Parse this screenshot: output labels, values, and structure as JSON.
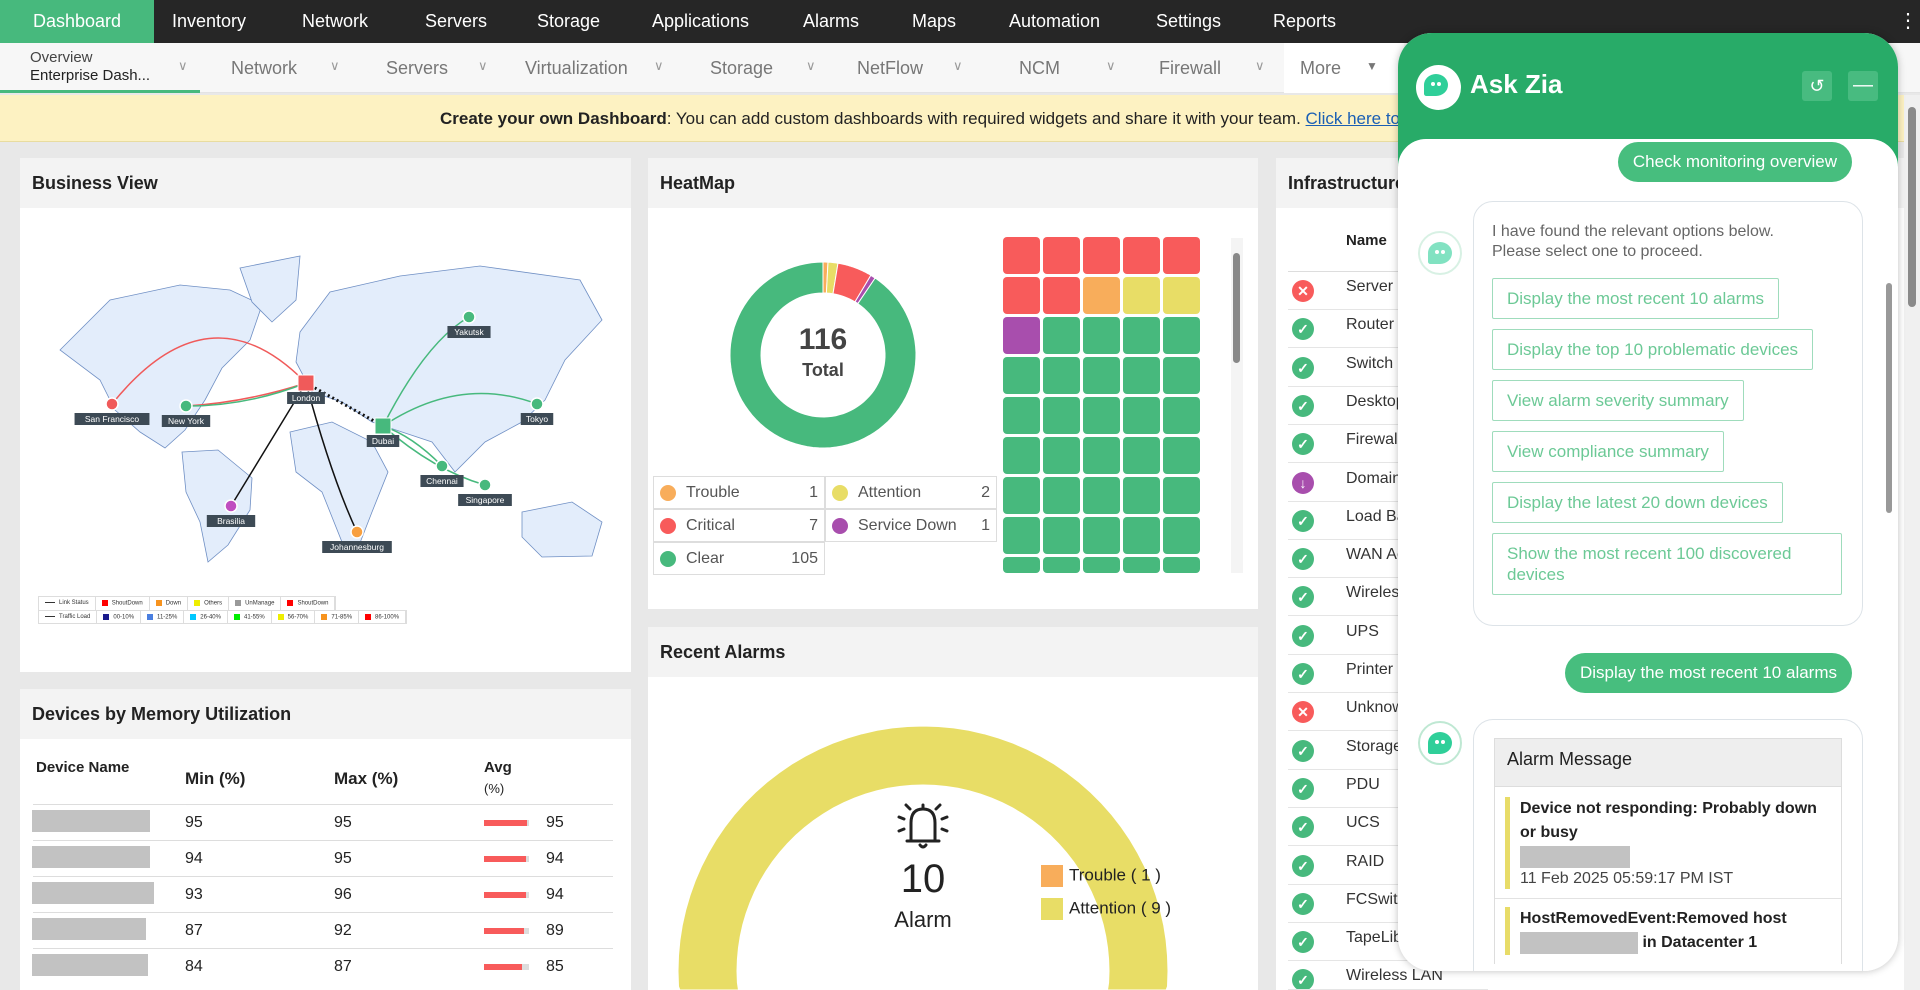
{
  "topnav": {
    "items": [
      "Dashboard",
      "Inventory",
      "Network",
      "Servers",
      "Storage",
      "Applications",
      "Alarms",
      "Maps",
      "Automation",
      "Settings",
      "Reports"
    ],
    "active": "Dashboard"
  },
  "subnav": {
    "overview_label": "Overview",
    "overview_value": "Enterprise Dash...",
    "items": [
      "Network",
      "Servers",
      "Virtualization",
      "Storage",
      "NetFlow",
      "NCM",
      "Firewall"
    ],
    "more": "More"
  },
  "banner": {
    "bold": "Create your own Dashboard",
    "text": ": You can add custom dashboards with required widgets and share it with your team. ",
    "link": "Click here to"
  },
  "business_view": {
    "title": "Business View",
    "cities": [
      "San Francisco",
      "New York",
      "London",
      "Dubai",
      "Yakutsk",
      "Tokyo",
      "Chennai",
      "Singapore",
      "Brasilia",
      "Johannesburg"
    ],
    "legend_status": [
      {
        "label": "Link Status",
        "color": "#333"
      },
      {
        "label": "ShoutDown",
        "color": "#ff0000"
      },
      {
        "label": "Down",
        "color": "#f7931e"
      },
      {
        "label": "Others",
        "color": "#eeee00"
      },
      {
        "label": "UnManage",
        "color": "#999999"
      },
      {
        "label": "ShoutDown",
        "color": "#ff0000"
      }
    ],
    "legend_traffic": [
      {
        "label": "Traffic Load",
        "color": "#333"
      },
      {
        "label": "00-10%",
        "color": "#1a1a8c"
      },
      {
        "label": "11-25%",
        "color": "#4a7fe0"
      },
      {
        "label": "26-40%",
        "color": "#00c8ff"
      },
      {
        "label": "41-55%",
        "color": "#00ee00"
      },
      {
        "label": "56-70%",
        "color": "#eeee00"
      },
      {
        "label": "71-85%",
        "color": "#f7931e"
      },
      {
        "label": "86-100%",
        "color": "#ff0000"
      }
    ]
  },
  "memory": {
    "title": "Devices by Memory Utilization",
    "headers": {
      "device": "Device Name",
      "min": "Min (%)",
      "max": "Max (%)",
      "avg": "Avg",
      "avg_unit": "(%)"
    },
    "rows": [
      {
        "min": "95",
        "max": "95",
        "avg": "95"
      },
      {
        "min": "94",
        "max": "95",
        "avg": "94"
      },
      {
        "min": "93",
        "max": "96",
        "avg": "94"
      },
      {
        "min": "87",
        "max": "92",
        "avg": "89"
      },
      {
        "min": "84",
        "max": "87",
        "avg": "85"
      }
    ]
  },
  "heatmap": {
    "title": "HeatMap",
    "total": "116",
    "total_label": "Total",
    "legend": [
      {
        "label": "Trouble",
        "count": "1",
        "color": "#f8ad5b"
      },
      {
        "label": "Attention",
        "count": "2",
        "color": "#e8dd66"
      },
      {
        "label": "Critical",
        "count": "7",
        "color": "#f85b5b"
      },
      {
        "label": "Service Down",
        "count": "1",
        "color": "#a84ead"
      },
      {
        "label": "Clear",
        "count": "105",
        "color": "#47b97d"
      }
    ]
  },
  "recent_alarms": {
    "title": "Recent Alarms",
    "count": "10",
    "label": "Alarm",
    "legend": [
      {
        "label": "Trouble ( 1 )",
        "value": 1,
        "color": "#f8ad5b"
      },
      {
        "label": "Attention ( 9 )",
        "value": 9,
        "color": "#e8dd66"
      }
    ]
  },
  "infrastructure": {
    "title": "Infrastructure",
    "header": "Name",
    "rows": [
      {
        "name": "Server",
        "status": "critical"
      },
      {
        "name": "Router",
        "status": "clear"
      },
      {
        "name": "Switch",
        "status": "clear"
      },
      {
        "name": "Desktop",
        "status": "clear"
      },
      {
        "name": "Firewall",
        "status": "clear"
      },
      {
        "name": "Domain",
        "status": "down"
      },
      {
        "name": "Load Ba",
        "status": "clear"
      },
      {
        "name": "WAN Ac",
        "status": "clear"
      },
      {
        "name": "Wireless",
        "status": "clear"
      },
      {
        "name": "UPS",
        "status": "clear"
      },
      {
        "name": "Printer",
        "status": "clear"
      },
      {
        "name": "Unknown",
        "status": "critical"
      },
      {
        "name": "Storage",
        "status": "clear"
      },
      {
        "name": "PDU",
        "status": "clear"
      },
      {
        "name": "UCS",
        "status": "clear"
      },
      {
        "name": "RAID",
        "status": "clear"
      },
      {
        "name": "FCSwitch",
        "status": "clear"
      },
      {
        "name": "TapeLib",
        "status": "clear"
      },
      {
        "name": "Wireless LAN",
        "status": "clear"
      }
    ]
  },
  "zia": {
    "title": "Ask Zia",
    "msg1": "Check monitoring overview",
    "bot_text": "I have found the relevant options below. Please select one to proceed.",
    "options": [
      "Display the most recent 10 alarms",
      "Display the top 10 problematic devices",
      "View alarm severity summary",
      "View compliance summary",
      "Display the latest 20 down devices",
      "Show the most recent 100 discovered devices"
    ],
    "msg2": "Display the most recent 10 alarms",
    "alarm_header": "Alarm Message",
    "alarms": [
      {
        "message": "Device not responding: Probably down or busy",
        "time": "11 Feb 2025 05:59:17 PM IST"
      },
      {
        "message": "HostRemovedEvent:Removed host",
        "suffix": "in Datacenter 1"
      }
    ]
  },
  "colors": {
    "accent": "#47b97d",
    "zia_header": "#28ab68",
    "critical": "#f85b5b",
    "trouble": "#f8ad5b",
    "attention": "#e8dd66",
    "down": "#a84ead",
    "clear": "#47b97d"
  }
}
